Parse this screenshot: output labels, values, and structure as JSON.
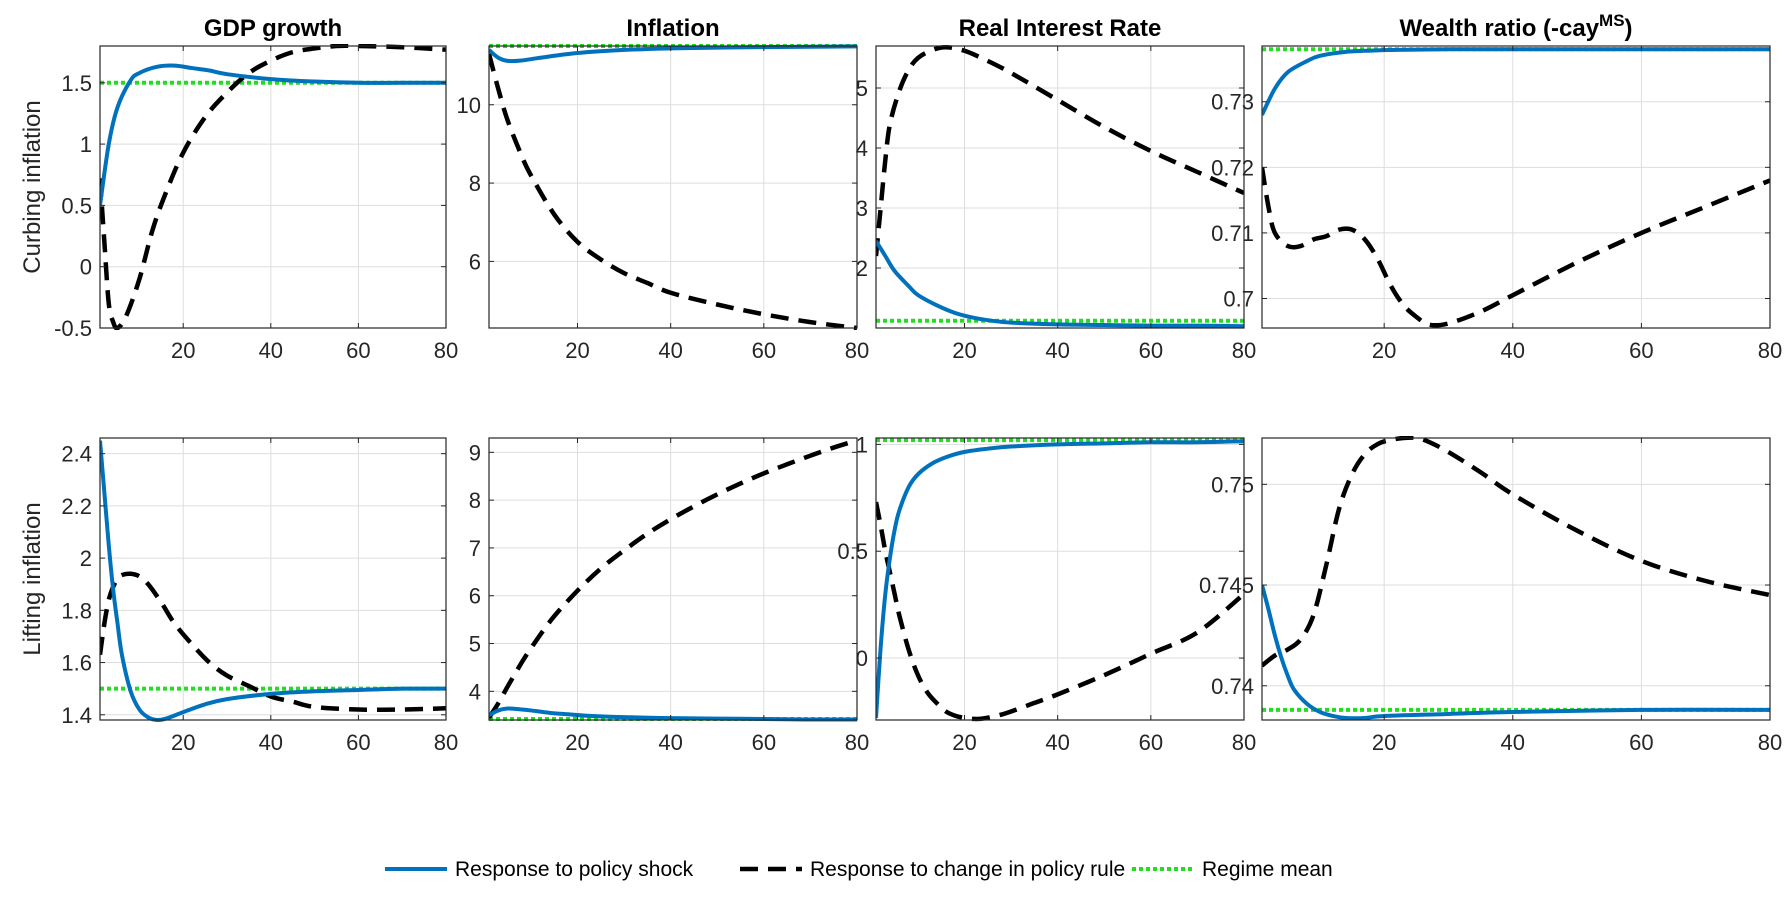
{
  "row_labels": [
    "Curbing inflation",
    "Lifting inflation"
  ],
  "legend": [
    {
      "label": "Response to policy shock",
      "color": "#0072BD",
      "style": "solid"
    },
    {
      "label": "Response to change in policy rule",
      "color": "#000000",
      "style": "dashed"
    },
    {
      "label": "Regime mean",
      "color": "#22DD22",
      "style": "dotted"
    }
  ],
  "chart_data": [
    {
      "type": "line",
      "title": "GDP growth",
      "title_sup": "",
      "row": 0,
      "col": 0,
      "xlim": [
        1,
        80
      ],
      "ylim": [
        -0.5,
        1.8
      ],
      "xticks": [
        20,
        40,
        60,
        80
      ],
      "xtick_labels": [
        "20",
        "40",
        "60",
        "80"
      ],
      "yticks": [
        -0.5,
        0,
        0.5,
        1,
        1.5
      ],
      "ytick_labels": [
        "-0.5",
        "0",
        "0.5",
        "1",
        "1.5"
      ],
      "grid": true,
      "series": [
        {
          "key": "policy_shock",
          "x": [
            1,
            3,
            5,
            8,
            10,
            14,
            18,
            22,
            26,
            30,
            40,
            50,
            60,
            70,
            80
          ],
          "y": [
            0.5,
            1.0,
            1.3,
            1.52,
            1.58,
            1.63,
            1.64,
            1.62,
            1.6,
            1.57,
            1.53,
            1.51,
            1.5,
            1.5,
            1.5
          ]
        },
        {
          "key": "policy_rule",
          "x": [
            1,
            2,
            3,
            4,
            5,
            7,
            10,
            13,
            16,
            20,
            25,
            30,
            35,
            40,
            45,
            50,
            55,
            60,
            70,
            80
          ],
          "y": [
            0.72,
            0.2,
            -0.3,
            -0.45,
            -0.5,
            -0.4,
            -0.1,
            0.3,
            0.6,
            0.93,
            1.22,
            1.42,
            1.58,
            1.68,
            1.75,
            1.78,
            1.8,
            1.8,
            1.79,
            1.77
          ]
        },
        {
          "key": "regime_mean",
          "x": [
            1,
            80
          ],
          "y": [
            1.5,
            1.5
          ]
        }
      ]
    },
    {
      "type": "line",
      "title": "Inflation",
      "title_sup": "",
      "row": 0,
      "col": 1,
      "xlim": [
        1,
        80
      ],
      "ylim": [
        4.3,
        11.5
      ],
      "xticks": [
        20,
        40,
        60,
        80
      ],
      "xtick_labels": [
        "20",
        "40",
        "60",
        "80"
      ],
      "yticks": [
        6,
        8,
        10
      ],
      "ytick_labels": [
        "6",
        "8",
        "10"
      ],
      "grid": true,
      "series": [
        {
          "key": "policy_shock",
          "x": [
            1,
            3,
            5,
            8,
            12,
            20,
            30,
            40,
            50,
            60,
            70,
            80
          ],
          "y": [
            11.4,
            11.2,
            11.12,
            11.13,
            11.2,
            11.32,
            11.4,
            11.44,
            11.46,
            11.47,
            11.48,
            11.49
          ]
        },
        {
          "key": "policy_rule",
          "x": [
            1,
            3,
            5,
            8,
            10,
            15,
            20,
            25,
            30,
            35,
            40,
            50,
            60,
            70,
            80
          ],
          "y": [
            11.3,
            10.4,
            9.6,
            8.7,
            8.2,
            7.2,
            6.5,
            6.05,
            5.7,
            5.45,
            5.2,
            4.9,
            4.65,
            4.45,
            4.3
          ]
        },
        {
          "key": "regime_mean",
          "x": [
            1,
            80
          ],
          "y": [
            11.5,
            11.5
          ]
        }
      ]
    },
    {
      "type": "line",
      "title": "Real Interest Rate",
      "title_sup": "",
      "row": 0,
      "col": 2,
      "xlim": [
        1,
        80
      ],
      "ylim": [
        1.0,
        5.7
      ],
      "xticks": [
        20,
        40,
        60,
        80
      ],
      "xtick_labels": [
        "20",
        "40",
        "60",
        "80"
      ],
      "yticks": [
        2,
        3,
        4,
        5
      ],
      "ytick_labels": [
        "2",
        "3",
        "4",
        "5"
      ],
      "grid": true,
      "series": [
        {
          "key": "policy_shock",
          "x": [
            1,
            3,
            5,
            8,
            10,
            14,
            18,
            22,
            26,
            30,
            40,
            50,
            60,
            70,
            80
          ],
          "y": [
            2.45,
            2.2,
            1.95,
            1.7,
            1.55,
            1.38,
            1.25,
            1.17,
            1.12,
            1.09,
            1.06,
            1.05,
            1.04,
            1.04,
            1.03
          ]
        },
        {
          "key": "policy_rule",
          "x": [
            1,
            2,
            3,
            4,
            6,
            8,
            10,
            13,
            16,
            20,
            25,
            30,
            40,
            50,
            60,
            70,
            80
          ],
          "y": [
            2.2,
            3.0,
            3.8,
            4.4,
            4.95,
            5.3,
            5.5,
            5.63,
            5.68,
            5.62,
            5.45,
            5.25,
            4.8,
            4.35,
            3.95,
            3.6,
            3.25
          ]
        },
        {
          "key": "regime_mean",
          "x": [
            1,
            80
          ],
          "y": [
            1.12,
            1.12
          ]
        }
      ]
    },
    {
      "type": "line",
      "title": "Wealth ratio (-cay",
      "title_sup": "MS",
      "title_suffix": ")",
      "row": 0,
      "col": 3,
      "xlim": [
        1,
        80
      ],
      "ylim": [
        0.6955,
        0.7385
      ],
      "xticks": [
        20,
        40,
        60,
        80
      ],
      "xtick_labels": [
        "20",
        "40",
        "60",
        "80"
      ],
      "yticks": [
        0.7,
        0.71,
        0.72,
        0.73
      ],
      "ytick_labels": [
        "0.7",
        "0.71",
        "0.72",
        "0.73"
      ],
      "grid": true,
      "series": [
        {
          "key": "policy_shock",
          "x": [
            1,
            3,
            5,
            8,
            10,
            14,
            18,
            22,
            30,
            40,
            60,
            80
          ],
          "y": [
            0.728,
            0.732,
            0.7345,
            0.7362,
            0.737,
            0.7376,
            0.7378,
            0.7379,
            0.738,
            0.738,
            0.738,
            0.738
          ]
        },
        {
          "key": "policy_rule",
          "x": [
            1,
            2,
            3,
            5,
            7,
            9,
            11,
            13,
            15,
            17,
            19,
            21,
            23,
            25,
            27,
            30,
            35,
            40,
            50,
            60,
            70,
            80
          ],
          "y": [
            0.72,
            0.714,
            0.71,
            0.708,
            0.708,
            0.709,
            0.7095,
            0.7105,
            0.7105,
            0.709,
            0.706,
            0.702,
            0.699,
            0.6972,
            0.696,
            0.6962,
            0.698,
            0.7005,
            0.7055,
            0.71,
            0.714,
            0.718
          ]
        },
        {
          "key": "regime_mean",
          "x": [
            1,
            80
          ],
          "y": [
            0.738,
            0.738
          ]
        }
      ]
    },
    {
      "type": "line",
      "title": "",
      "title_sup": "",
      "row": 1,
      "col": 0,
      "xlim": [
        1,
        80
      ],
      "ylim": [
        1.38,
        2.46
      ],
      "xticks": [
        20,
        40,
        60,
        80
      ],
      "xtick_labels": [
        "20",
        "40",
        "60",
        "80"
      ],
      "yticks": [
        1.4,
        1.6,
        1.8,
        2,
        2.2,
        2.4
      ],
      "ytick_labels": [
        "1.4",
        "1.6",
        "1.8",
        "2",
        "2.2",
        "2.4"
      ],
      "grid": true,
      "series": [
        {
          "key": "policy_shock",
          "x": [
            1,
            2,
            3,
            4,
            5,
            6,
            8,
            10,
            12,
            14,
            16,
            20,
            25,
            30,
            40,
            50,
            60,
            70,
            80
          ],
          "y": [
            2.45,
            2.25,
            2.05,
            1.88,
            1.75,
            1.63,
            1.49,
            1.42,
            1.39,
            1.38,
            1.385,
            1.41,
            1.44,
            1.46,
            1.48,
            1.49,
            1.495,
            1.5,
            1.5
          ]
        },
        {
          "key": "policy_rule",
          "x": [
            1,
            2,
            3,
            4,
            5,
            6,
            8,
            10,
            12,
            15,
            18,
            22,
            26,
            30,
            35,
            40,
            45,
            50,
            60,
            70,
            80
          ],
          "y": [
            1.63,
            1.75,
            1.84,
            1.89,
            1.92,
            1.935,
            1.94,
            1.93,
            1.9,
            1.83,
            1.75,
            1.67,
            1.6,
            1.55,
            1.51,
            1.47,
            1.45,
            1.43,
            1.42,
            1.42,
            1.425
          ]
        },
        {
          "key": "regime_mean",
          "x": [
            1,
            80
          ],
          "y": [
            1.5,
            1.5
          ]
        }
      ]
    },
    {
      "type": "line",
      "title": "",
      "title_sup": "",
      "row": 1,
      "col": 1,
      "xlim": [
        1,
        80
      ],
      "ylim": [
        3.4,
        9.3
      ],
      "xticks": [
        20,
        40,
        60,
        80
      ],
      "xtick_labels": [
        "20",
        "40",
        "60",
        "80"
      ],
      "yticks": [
        4,
        5,
        6,
        7,
        8,
        9
      ],
      "ytick_labels": [
        "4",
        "5",
        "6",
        "7",
        "8",
        "9"
      ],
      "grid": true,
      "series": [
        {
          "key": "policy_shock",
          "x": [
            1,
            3,
            5,
            8,
            10,
            14,
            18,
            22,
            30,
            40,
            50,
            60,
            70,
            80
          ],
          "y": [
            3.5,
            3.6,
            3.64,
            3.62,
            3.6,
            3.55,
            3.52,
            3.49,
            3.46,
            3.44,
            3.43,
            3.42,
            3.41,
            3.41
          ]
        },
        {
          "key": "policy_rule",
          "x": [
            1,
            3,
            5,
            8,
            10,
            14,
            18,
            22,
            26,
            30,
            35,
            40,
            45,
            50,
            55,
            60,
            65,
            70,
            75,
            80
          ],
          "y": [
            3.45,
            3.75,
            4.1,
            4.6,
            4.9,
            5.45,
            5.9,
            6.3,
            6.65,
            6.95,
            7.3,
            7.6,
            7.87,
            8.12,
            8.35,
            8.56,
            8.75,
            8.93,
            9.1,
            9.25
          ]
        },
        {
          "key": "regime_mean",
          "x": [
            1,
            80
          ],
          "y": [
            3.42,
            3.42
          ]
        }
      ]
    },
    {
      "type": "line",
      "title": "",
      "title_sup": "",
      "row": 1,
      "col": 2,
      "xlim": [
        1,
        80
      ],
      "ylim": [
        -0.29,
        1.03
      ],
      "xticks": [
        20,
        40,
        60,
        80
      ],
      "xtick_labels": [
        "20",
        "40",
        "60",
        "80"
      ],
      "yticks": [
        0,
        0.5,
        1
      ],
      "ytick_labels": [
        "0",
        "0.5",
        "1"
      ],
      "grid": true,
      "series": [
        {
          "key": "policy_shock",
          "x": [
            1,
            2,
            3,
            4,
            5,
            6,
            8,
            10,
            13,
            16,
            20,
            25,
            30,
            40,
            50,
            60,
            70,
            80
          ],
          "y": [
            -0.28,
            0.05,
            0.3,
            0.47,
            0.6,
            0.69,
            0.8,
            0.86,
            0.91,
            0.94,
            0.965,
            0.98,
            0.99,
            1.0,
            1.005,
            1.01,
            1.01,
            1.015
          ]
        },
        {
          "key": "policy_rule",
          "x": [
            1,
            2,
            3,
            4,
            5,
            6,
            8,
            10,
            12,
            14,
            16,
            18,
            20,
            22,
            24,
            27,
            30,
            35,
            40,
            50,
            60,
            70,
            80
          ],
          "y": [
            0.73,
            0.62,
            0.5,
            0.4,
            0.3,
            0.2,
            0.04,
            -0.08,
            -0.16,
            -0.21,
            -0.25,
            -0.27,
            -0.28,
            -0.285,
            -0.283,
            -0.27,
            -0.25,
            -0.21,
            -0.17,
            -0.08,
            0.02,
            0.12,
            0.3
          ]
        },
        {
          "key": "regime_mean",
          "x": [
            1,
            80
          ],
          "y": [
            1.02,
            1.02
          ]
        }
      ]
    },
    {
      "type": "line",
      "title": "",
      "title_sup": "",
      "row": 1,
      "col": 3,
      "xlim": [
        1,
        80
      ],
      "ylim": [
        0.7383,
        0.7523
      ],
      "xticks": [
        20,
        40,
        60,
        80
      ],
      "xtick_labels": [
        "20",
        "40",
        "60",
        "80"
      ],
      "yticks": [
        0.74,
        0.745,
        0.75
      ],
      "ytick_labels": [
        "0.74",
        "0.745",
        "0.75"
      ],
      "grid": true,
      "series": [
        {
          "key": "policy_shock",
          "x": [
            1,
            2,
            3,
            4,
            5,
            6,
            8,
            10,
            12,
            14,
            17,
            20,
            30,
            40,
            60,
            80
          ],
          "y": [
            0.745,
            0.7438,
            0.7425,
            0.7414,
            0.7405,
            0.7398,
            0.7391,
            0.7387,
            0.7385,
            0.7384,
            0.7384,
            0.7385,
            0.7386,
            0.7387,
            0.7388,
            0.7388
          ]
        },
        {
          "key": "policy_rule",
          "x": [
            1,
            3,
            5,
            7,
            9,
            11,
            13,
            15,
            17,
            19,
            21,
            23,
            25,
            27,
            30,
            35,
            40,
            50,
            60,
            70,
            80
          ],
          "y": [
            0.741,
            0.7415,
            0.7418,
            0.7423,
            0.7435,
            0.746,
            0.7488,
            0.7505,
            0.7515,
            0.752,
            0.7522,
            0.7523,
            0.7523,
            0.7521,
            0.7516,
            0.7506,
            0.7495,
            0.7477,
            0.7462,
            0.7452,
            0.7445
          ]
        },
        {
          "key": "regime_mean",
          "x": [
            1,
            80
          ],
          "y": [
            0.7388,
            0.7388
          ]
        }
      ]
    }
  ]
}
